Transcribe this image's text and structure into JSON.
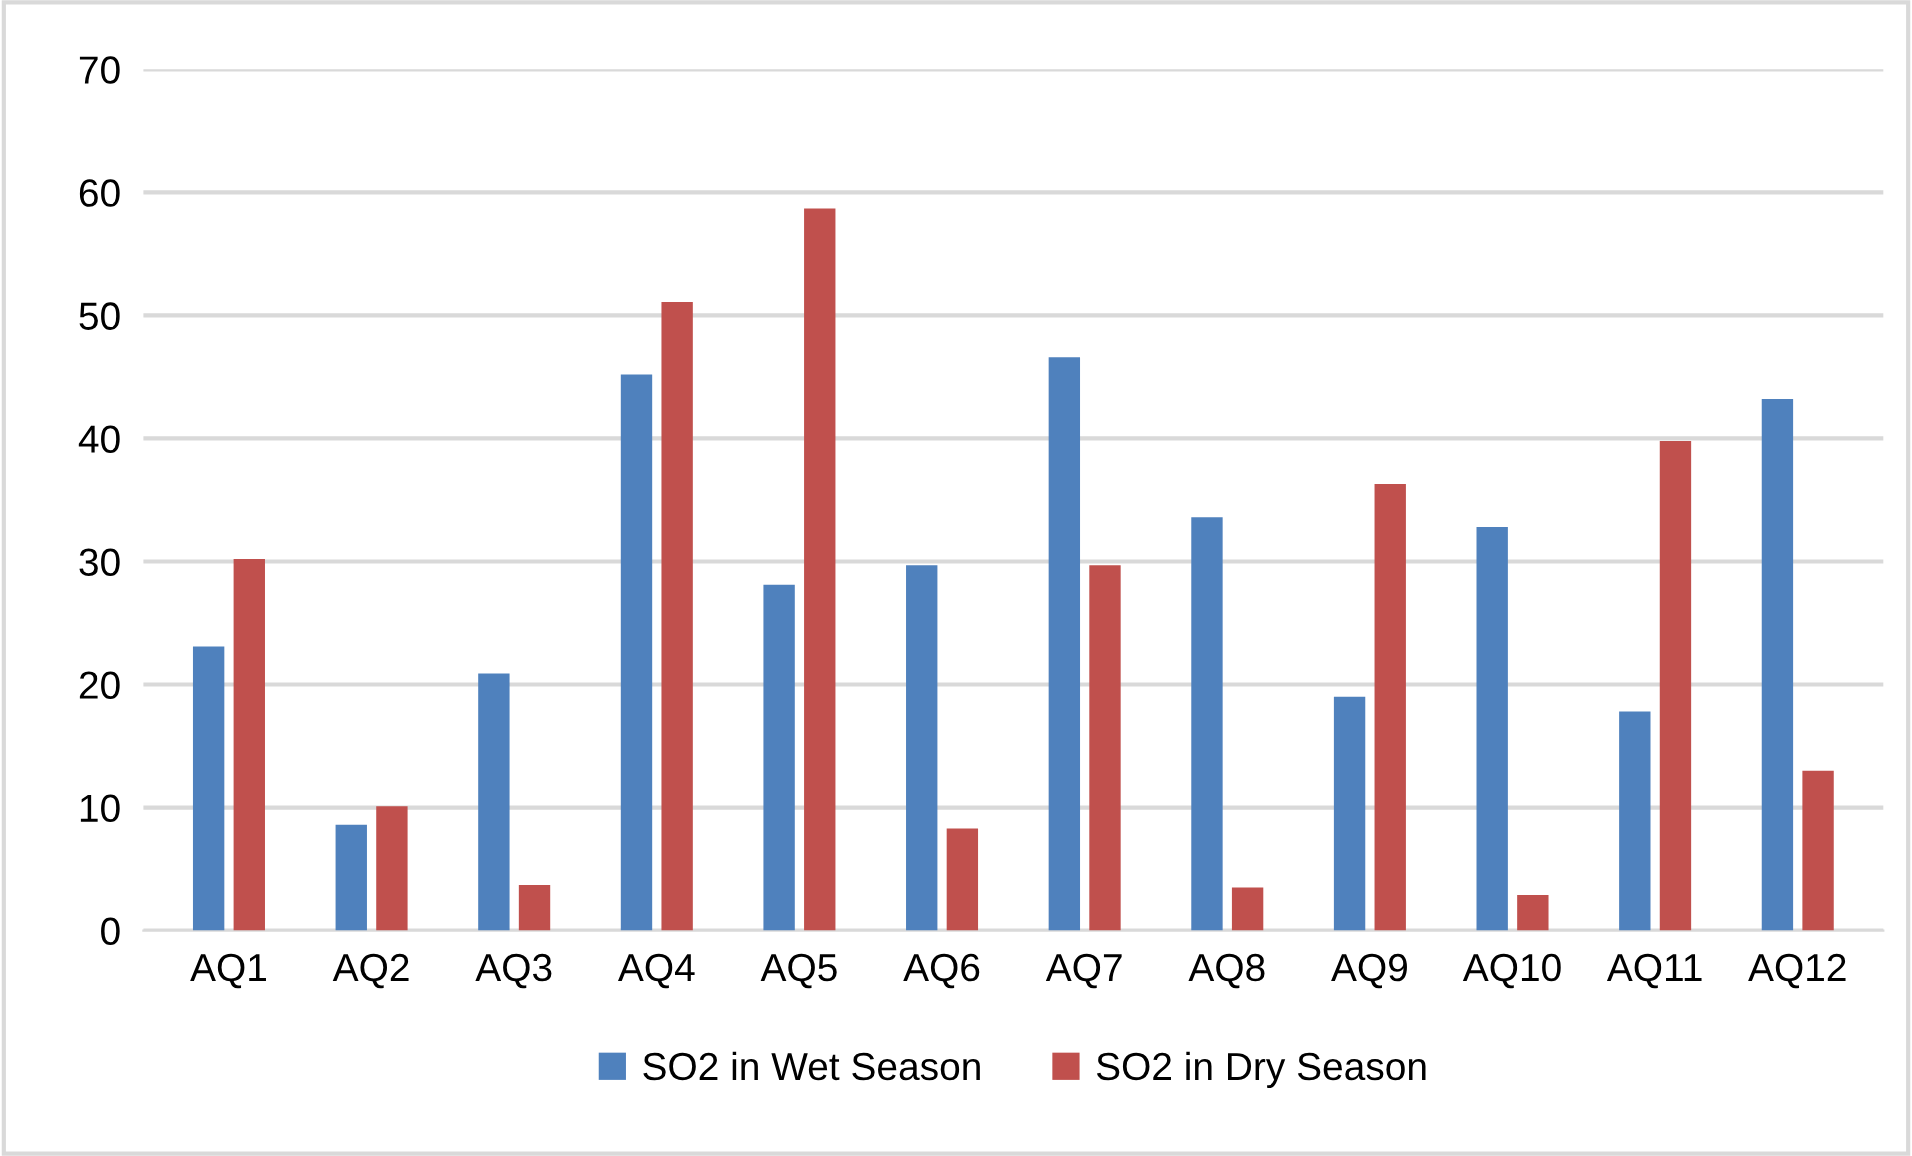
{
  "chart_data": {
    "type": "bar",
    "categories": [
      "AQ1",
      "AQ2",
      "AQ3",
      "AQ4",
      "AQ5",
      "AQ6",
      "AQ7",
      "AQ8",
      "AQ9",
      "AQ10",
      "AQ11",
      "AQ12"
    ],
    "series": [
      {
        "name": "SO2 in Wet Season",
        "color": "#4f81bd",
        "values": [
          23.1,
          8.6,
          20.9,
          45.2,
          28.1,
          29.7,
          46.6,
          33.6,
          19.0,
          32.8,
          17.8,
          43.2
        ]
      },
      {
        "name": "SO2 in Dry Season",
        "color": "#c0504d",
        "values": [
          30.2,
          10.1,
          3.7,
          51.1,
          58.7,
          8.3,
          29.7,
          3.5,
          36.3,
          2.9,
          39.8,
          13.0
        ]
      }
    ],
    "ylim": [
      0,
      70
    ],
    "yticks": [
      0,
      10,
      20,
      30,
      40,
      50,
      60,
      70
    ],
    "grid": "y",
    "legend": "bottom"
  }
}
